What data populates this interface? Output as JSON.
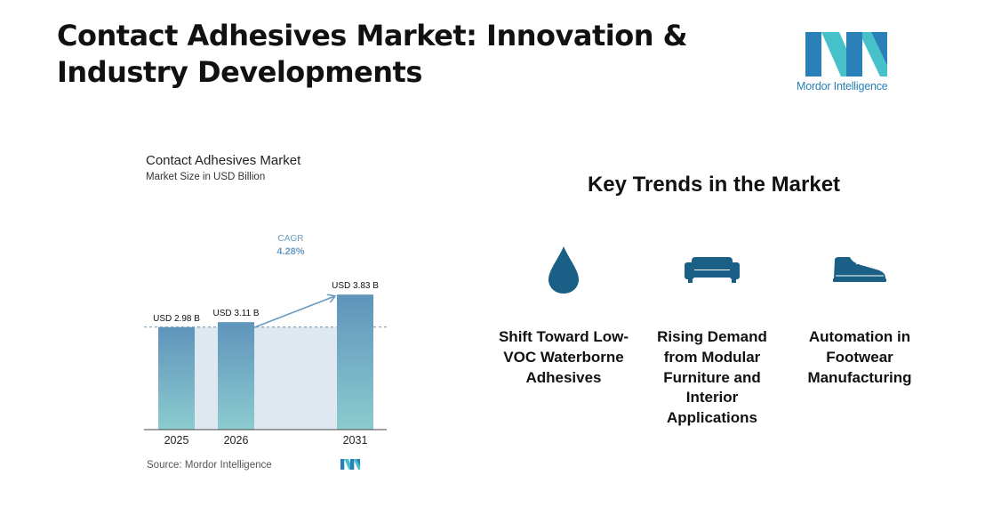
{
  "page": {
    "title": "Contact Adhesives Market: Innovation & Industry Developments",
    "logo_text": "Mordor Intelligence"
  },
  "chart_data": {
    "type": "bar",
    "title": "Contact Adhesives Market",
    "subtitle": "Market Size in USD Billion",
    "categories": [
      "2025",
      "2026",
      "2031"
    ],
    "values": [
      2.98,
      3.11,
      3.83
    ],
    "data_labels": [
      "USD 2.98 B",
      "USD 3.11 B",
      "USD 3.83 B"
    ],
    "annotation": {
      "label": "CAGR",
      "value": "4.28%"
    },
    "reference_line_value": 2.98,
    "source": "Source:  Mordor Intelligence",
    "colors": {
      "bar_top": "#5f94bb",
      "bar_bottom": "#8ccbcf",
      "shade": "#dde8f1",
      "annotation": "#6a9bc1"
    }
  },
  "trends": {
    "heading": "Key Trends in the Market",
    "items": [
      {
        "icon": "water-drop-icon",
        "label": "Shift Toward Low-VOC Waterborne Adhesives"
      },
      {
        "icon": "sofa-icon",
        "label": "Rising Demand from Modular Furniture and Interior Applications"
      },
      {
        "icon": "shoe-icon",
        "label": "Automation in Footwear Manufacturing"
      }
    ],
    "icon_color": "#1a5f86"
  }
}
